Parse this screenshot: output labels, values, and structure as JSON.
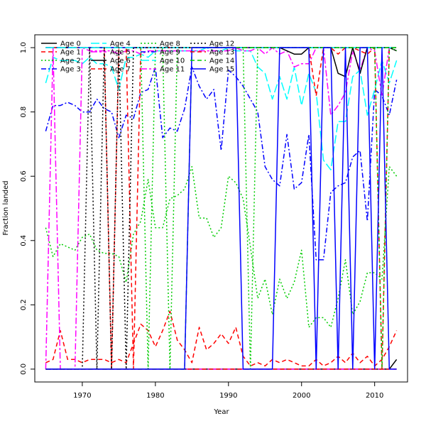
{
  "chart_data": {
    "type": "line",
    "title": "",
    "xlabel": "Year",
    "ylabel": "Fraction landed",
    "xlim": [
      1963.5,
      2014.5
    ],
    "ylim": [
      -0.04,
      1.04
    ],
    "xticks": [
      1970,
      1980,
      1990,
      2000,
      2010
    ],
    "yticks": [
      0.0,
      0.2,
      0.4,
      0.6,
      0.8,
      1.0
    ],
    "ytick_labels": [
      "0.0",
      "0.2",
      "0.4",
      "0.6",
      "0.8",
      "1.0"
    ],
    "grid": false,
    "legend_position": "top-left",
    "x": [
      1965,
      1966,
      1967,
      1968,
      1969,
      1970,
      1971,
      1972,
      1973,
      1974,
      1975,
      1976,
      1977,
      1978,
      1979,
      1980,
      1981,
      1982,
      1983,
      1984,
      1985,
      1986,
      1987,
      1988,
      1989,
      1990,
      1991,
      1992,
      1993,
      1994,
      1995,
      1996,
      1997,
      1998,
      1999,
      2000,
      2001,
      2002,
      2003,
      2004,
      2005,
      2006,
      2007,
      2008,
      2009,
      2010,
      2011,
      2012,
      2013
    ],
    "series": [
      {
        "name": "Age 0",
        "color": "#000000",
        "dash": "solid",
        "values": [
          0,
          0,
          0,
          0,
          0,
          0,
          0,
          0,
          0,
          0,
          0,
          0,
          0,
          0,
          0,
          0,
          0,
          0,
          0,
          0,
          0,
          0,
          0,
          0,
          0,
          0,
          0,
          0,
          0,
          0,
          0,
          0,
          0,
          0,
          0,
          0,
          0,
          0,
          0,
          0,
          0,
          0,
          0,
          0,
          0,
          0,
          0,
          0,
          0.03
        ]
      },
      {
        "name": "Age 1",
        "color": "#ff0000",
        "dash": "dashed",
        "values": [
          0.02,
          0.03,
          0.12,
          0.03,
          0.03,
          0.02,
          0.03,
          0.03,
          0.03,
          0.02,
          0.03,
          0.02,
          0.08,
          0.14,
          0.12,
          0.07,
          0.12,
          0.18,
          0.09,
          0.06,
          0.02,
          0.13,
          0.06,
          0.08,
          0.11,
          0.08,
          0.13,
          0.04,
          0.01,
          0.02,
          0.01,
          0.03,
          0.02,
          0.03,
          0.02,
          0.01,
          0.01,
          0.03,
          0.01,
          0.02,
          0.04,
          0.02,
          0.05,
          0.02,
          0.04,
          0.01,
          0.03,
          0.07,
          0.12
        ]
      },
      {
        "name": "Age 2",
        "color": "#00cc00",
        "dash": "dotted",
        "values": [
          0.44,
          0.35,
          0.39,
          0.38,
          0.37,
          0.41,
          0.42,
          0.37,
          0.36,
          0.36,
          0.35,
          0.27,
          0.42,
          0.46,
          0.59,
          0.44,
          0.44,
          0.53,
          0.54,
          0.56,
          0.63,
          0.47,
          0.47,
          0.41,
          0.44,
          0.6,
          0.58,
          0.53,
          0.38,
          0.22,
          0.28,
          0.17,
          0.28,
          0.22,
          0.27,
          0.37,
          0.13,
          0.16,
          0.16,
          0.13,
          0.22,
          0.34,
          0.17,
          0.21,
          0.3,
          0.3,
          0.28,
          0.63,
          0.6
        ]
      },
      {
        "name": "Age 3",
        "color": "#0000ff",
        "dash": "dashdot",
        "values": [
          0.74,
          0.82,
          0.82,
          0.83,
          0.82,
          0.8,
          0.8,
          0.84,
          0.81,
          0.8,
          0.72,
          0.79,
          0.78,
          0.86,
          0.87,
          0.94,
          0.72,
          0.75,
          0.74,
          0.81,
          0.94,
          0.88,
          0.84,
          0.87,
          0.68,
          0.93,
          0.91,
          0.88,
          0.84,
          0.8,
          0.63,
          0.59,
          0.57,
          0.73,
          0.56,
          0.58,
          0.73,
          0.34,
          0.34,
          0.55,
          0.57,
          0.58,
          0.66,
          0.68,
          0.46,
          0.87,
          0.85,
          0.79,
          0.9
        ]
      },
      {
        "name": "Age 4",
        "color": "#00ffff",
        "dash": "longdash",
        "values": [
          0.89,
          0.97,
          0.96,
          0.96,
          0.96,
          0.95,
          0.97,
          0.95,
          0.95,
          0.94,
          0.87,
          0.97,
          0.97,
          0.98,
          0.97,
          0.99,
          0.99,
          0.99,
          0.99,
          0.99,
          0.99,
          0.99,
          1.0,
          0.99,
          0.99,
          1.0,
          0.99,
          0.99,
          0.99,
          0.94,
          0.92,
          0.84,
          0.91,
          0.84,
          0.94,
          0.82,
          0.92,
          0.86,
          0.65,
          0.62,
          0.77,
          0.77,
          0.91,
          0.93,
          0.79,
          0.87,
          0.96,
          0.89,
          0.96
        ]
      },
      {
        "name": "Age 5",
        "color": "#ff00ff",
        "dash": "twodash",
        "values": [
          0,
          1.0,
          0,
          0,
          0,
          1.0,
          0.99,
          0.99,
          0.99,
          0.99,
          0.98,
          0.99,
          0.99,
          0.98,
          0.99,
          0.99,
          0.99,
          0.99,
          0.99,
          0.99,
          0.99,
          0.99,
          0.99,
          0.99,
          0.99,
          0.99,
          1.0,
          0.99,
          0.99,
          1.0,
          0.98,
          1.0,
          0.98,
          0.99,
          0.94,
          0.95,
          0.95,
          1.0,
          1.0,
          0.79,
          0.82,
          0.86,
          0.99,
          0.93,
          1.0,
          0.99,
          0.85,
          1.0,
          0.99
        ]
      },
      {
        "name": "Age 6",
        "color": "#000000",
        "dash": "solid",
        "values": [
          1.0,
          1.0,
          1.0,
          1.0,
          1.0,
          1.0,
          1.0,
          1.0,
          1.0,
          1.0,
          1.0,
          1.0,
          1.0,
          1.0,
          1.0,
          1.0,
          1.0,
          1.0,
          1.0,
          1.0,
          1.0,
          1.0,
          1.0,
          1.0,
          1.0,
          1.0,
          1.0,
          1.0,
          1.0,
          1.0,
          1.0,
          1.0,
          1.0,
          0.99,
          0.98,
          0.98,
          1.0,
          1.0,
          1.0,
          1.0,
          0.92,
          0.91,
          1.0,
          0.92,
          1.0,
          1.0,
          1.0,
          1.0,
          0.99
        ]
      },
      {
        "name": "Age 7",
        "color": "#ff0000",
        "dash": "dashed",
        "values": [
          1.0,
          1.0,
          1.0,
          1.0,
          1.0,
          1.0,
          1.0,
          1.0,
          1.0,
          0,
          1.0,
          1.0,
          0,
          1.0,
          1.0,
          1.0,
          1.0,
          1.0,
          1.0,
          1.0,
          1.0,
          1.0,
          1.0,
          1.0,
          1.0,
          1.0,
          1.0,
          1.0,
          1.0,
          1.0,
          1.0,
          1.0,
          1.0,
          1.0,
          1.0,
          1.0,
          1.0,
          0.85,
          1.0,
          1.0,
          0.98,
          1.0,
          1.0,
          0.99,
          0.98,
          1.0,
          0,
          1.0,
          1.0
        ]
      },
      {
        "name": "Age 8",
        "color": "#00cc00",
        "dash": "dotted",
        "values": [
          1.0,
          1.0,
          1.0,
          1.0,
          1.0,
          1.0,
          1.0,
          1.0,
          1.0,
          1.0,
          1.0,
          1.0,
          1.0,
          1.0,
          0,
          1.0,
          1.0,
          0,
          1.0,
          1.0,
          1.0,
          1.0,
          1.0,
          1.0,
          1.0,
          1.0,
          1.0,
          1.0,
          0,
          1.0,
          1.0,
          1.0,
          1.0,
          1.0,
          1.0,
          1.0,
          1.0,
          1.0,
          1.0,
          1.0,
          1.0,
          1.0,
          1.0,
          1.0,
          1.0,
          1.0,
          0,
          1.0,
          0.99
        ]
      },
      {
        "name": "Age 9",
        "color": "#0000ff",
        "dash": "dashdot",
        "values": [
          1.0,
          1.0,
          1.0,
          1.0,
          1.0,
          1.0,
          1.0,
          1.0,
          1.0,
          1.0,
          1.0,
          1.0,
          1.0,
          1.0,
          1.0,
          1.0,
          1.0,
          1.0,
          1.0,
          1.0,
          1.0,
          1.0,
          1.0,
          1.0,
          1.0,
          1.0,
          1.0,
          1.0,
          1.0,
          1.0,
          1.0,
          1.0,
          1.0,
          1.0,
          1.0,
          1.0,
          1.0,
          1.0,
          1.0,
          1.0,
          1.0,
          1.0,
          1.0,
          1.0,
          1.0,
          1.0,
          1.0,
          1.0,
          1.0
        ]
      },
      {
        "name": "Age 10",
        "color": "#00ffff",
        "dash": "longdash",
        "values": [
          1.0,
          1.0,
          1.0,
          1.0,
          1.0,
          1.0,
          1.0,
          1.0,
          1.0,
          1.0,
          1.0,
          1.0,
          1.0,
          1.0,
          1.0,
          1.0,
          1.0,
          1.0,
          1.0,
          1.0,
          1.0,
          1.0,
          1.0,
          1.0,
          1.0,
          1.0,
          1.0,
          1.0,
          1.0,
          1.0,
          1.0,
          1.0,
          1.0,
          1.0,
          1.0,
          1.0,
          1.0,
          1.0,
          1.0,
          1.0,
          1.0,
          1.0,
          1.0,
          1.0,
          1.0,
          1.0,
          1.0,
          1.0,
          1.0
        ]
      },
      {
        "name": "Age 11",
        "color": "#ff00ff",
        "dash": "twodash",
        "values": [
          0,
          0,
          0,
          0,
          0,
          0,
          0,
          0,
          0,
          0,
          0,
          0,
          0,
          0,
          0,
          0,
          0,
          0,
          0,
          0,
          0,
          0,
          0,
          0,
          0,
          0,
          0,
          0,
          0,
          0,
          0,
          0,
          0,
          0,
          0,
          0,
          0,
          0,
          0,
          0,
          0,
          0,
          0,
          0,
          0,
          0,
          0,
          0,
          0
        ]
      },
      {
        "name": "Age 12",
        "color": "#000000",
        "dash": "dotted",
        "values": [
          0,
          0,
          0,
          0,
          0,
          0,
          1.0,
          0,
          1.0,
          0,
          1.0,
          0,
          1.0,
          1.0,
          1.0,
          1.0,
          1.0,
          1.0,
          1.0,
          1.0,
          1.0,
          1.0,
          1.0,
          1.0,
          1.0,
          1.0,
          1.0,
          1.0,
          1.0,
          1.0,
          1.0,
          1.0,
          1.0,
          1.0,
          1.0,
          1.0,
          1.0,
          1.0,
          1.0,
          1.0,
          1.0,
          1.0,
          1.0,
          1.0,
          1.0,
          1.0,
          1.0,
          1.0,
          1.0
        ]
      },
      {
        "name": "Age 13",
        "color": "#ff0000",
        "dash": "dashed",
        "values": [
          0,
          0,
          0,
          0,
          0,
          0,
          0,
          0,
          0,
          0,
          0,
          0,
          0,
          0,
          0,
          0,
          0,
          0,
          0,
          0,
          0,
          0,
          0,
          0,
          0,
          0,
          0,
          0,
          0,
          0,
          0,
          0,
          0,
          0,
          0,
          0,
          0,
          0,
          0,
          0,
          0,
          0,
          0,
          0,
          0,
          0,
          0,
          0,
          0
        ]
      },
      {
        "name": "Age 14",
        "color": "#00cc00",
        "dash": "dashed",
        "values": [
          0,
          0,
          0,
          0,
          0,
          0,
          0,
          0,
          0,
          0,
          0,
          0,
          0,
          0,
          0,
          0,
          0,
          0,
          0,
          0,
          1.0,
          1.0,
          1.0,
          1.0,
          1.0,
          1.0,
          1.0,
          1.0,
          1.0,
          1.0,
          1.0,
          1.0,
          1.0,
          1.0,
          1.0,
          1.0,
          1.0,
          1.0,
          1.0,
          1.0,
          1.0,
          1.0,
          1.0,
          1.0,
          1.0,
          1.0,
          1.0,
          1.0,
          1.0
        ]
      },
      {
        "name": "Age 15",
        "color": "#0000ff",
        "dash": "solid",
        "values": [
          0,
          0,
          0,
          0,
          0,
          0,
          0,
          0,
          0,
          0,
          0,
          0,
          0,
          0,
          0,
          0,
          0,
          0,
          0,
          0,
          1.0,
          1.0,
          1.0,
          1.0,
          1.0,
          1.0,
          1.0,
          0,
          0,
          0,
          0,
          0,
          1.0,
          1.0,
          1.0,
          1.0,
          1.0,
          0,
          1.0,
          1.0,
          0,
          1.0,
          0,
          1.0,
          1.0,
          0,
          1.0,
          0,
          0
        ]
      }
    ]
  }
}
